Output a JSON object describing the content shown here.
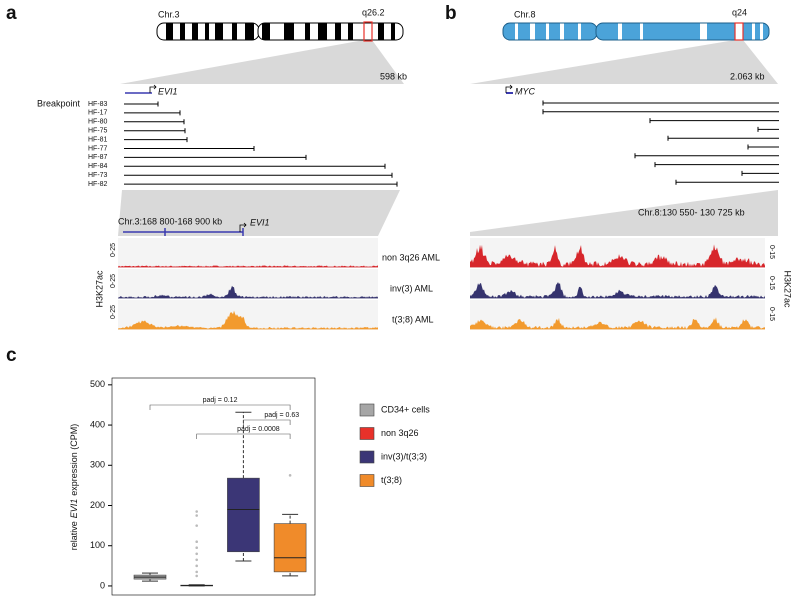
{
  "panel_a": {
    "label": "a",
    "chromosome": "Chr.3",
    "band": "q26.2",
    "span": "598 kb",
    "gene": "EVI1",
    "breakpoint_title": "Breakpoint",
    "breakpoints": [
      "HF-83",
      "HF-17",
      "HF-80",
      "HF-75",
      "HF-81",
      "HF-77",
      "HF-87",
      "HF-84",
      "HF-73",
      "HF-82"
    ],
    "region": "Chr.3:168 800-168 900 kb",
    "track_scales": [
      "0-25",
      "0-25",
      "0-25"
    ],
    "track_names": [
      "non 3q26 AML",
      "inv(3) AML",
      "t(3;8) AML"
    ],
    "mark": "H3K27ac"
  },
  "panel_b": {
    "label": "b",
    "chromosome": "Chr.8",
    "band": "q24",
    "span": "2.063 kb",
    "gene": "MYC",
    "region": "Chr.8:130 550- 130 725 kb",
    "track_scales": [
      "0-15",
      "0-15",
      "0-15"
    ],
    "mark": "H3K27ac"
  },
  "chart_data": {
    "type": "box",
    "panel_label": "c",
    "ylabel": {
      "before": "relative",
      "gene": "EVI1",
      "after": "expression (CPM)"
    },
    "ylim": [
      -25,
      517
    ],
    "yticks": [
      0,
      100,
      200,
      300,
      400,
      500
    ],
    "series": [
      {
        "name": "CD34+ cells",
        "color": "#a6a6a6",
        "whisker_low": 12,
        "q1": 17,
        "median": 22,
        "q3": 27,
        "whisker_high": 32,
        "outliers": []
      },
      {
        "name": "non 3q26",
        "color": "#e8312a",
        "whisker_low": 0,
        "q1": 0,
        "median": 1,
        "q3": 2,
        "whisker_high": 3,
        "outliers": [
          25,
          35,
          50,
          65,
          80,
          95,
          110,
          150,
          175,
          185
        ]
      },
      {
        "name": "inv(3)/t(3;3)",
        "color": "#3b3676",
        "whisker_low": 62,
        "q1": 85,
        "median": 190,
        "q3": 268,
        "whisker_high": 432,
        "outliers": []
      },
      {
        "name": "t(3;8)",
        "color": "#f08b2a",
        "whisker_low": 25,
        "q1": 35,
        "median": 70,
        "q3": 155,
        "whisker_high": 178,
        "outliers": [
          275
        ]
      }
    ],
    "annotations": [
      "padj = 0.12",
      "padj = 0.63",
      "padj = 0.0008"
    ]
  }
}
